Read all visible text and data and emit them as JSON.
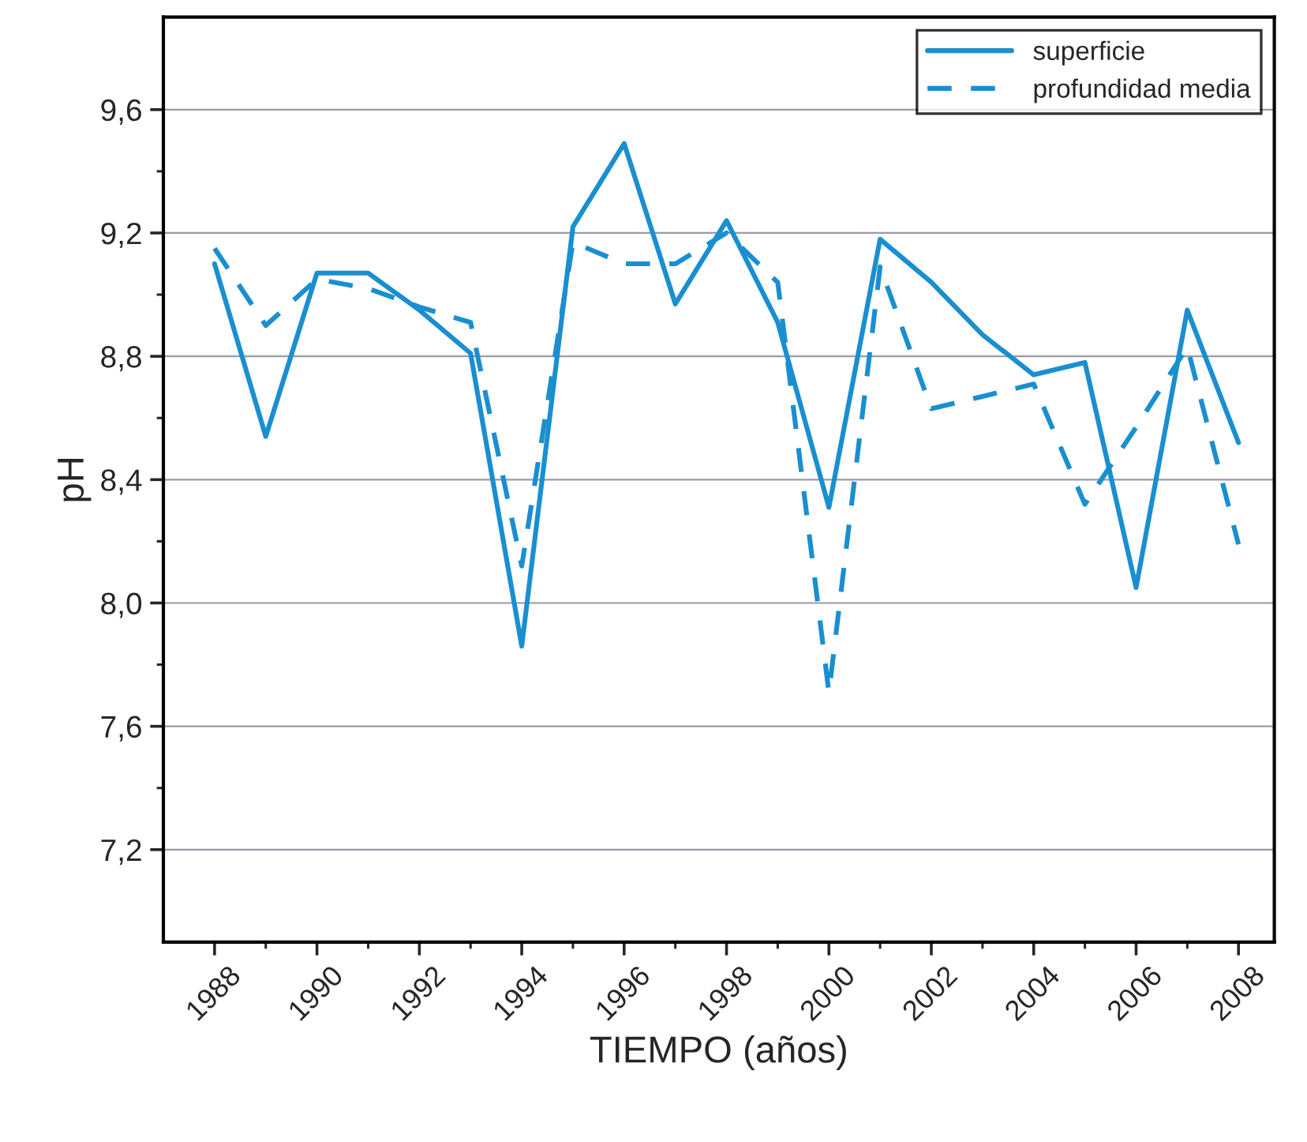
{
  "chart_data": {
    "type": "line",
    "xlabel": "TIEMPO (años)",
    "ylabel": "pH",
    "x": [
      1988,
      1989,
      1990,
      1991,
      1992,
      1993,
      1994,
      1995,
      1996,
      1997,
      1998,
      1999,
      2000,
      2001,
      2002,
      2003,
      2004,
      2005,
      2006,
      2007,
      2008
    ],
    "series": [
      {
        "name": "superficie",
        "color": "#1a8fd0",
        "line_style": "solid",
        "values": [
          9.1,
          8.54,
          9.07,
          9.07,
          8.95,
          8.81,
          7.86,
          9.22,
          9.49,
          8.97,
          9.24,
          8.91,
          8.31,
          9.18,
          9.04,
          8.87,
          8.74,
          8.78,
          8.05,
          8.95,
          8.52
        ]
      },
      {
        "name": "profundidad media",
        "color": "#1a8fd0",
        "line_style": "dashed",
        "values": [
          9.15,
          8.9,
          9.05,
          9.02,
          8.96,
          8.91,
          8.12,
          9.17,
          9.1,
          9.1,
          9.2,
          9.04,
          7.71,
          9.09,
          8.63,
          8.67,
          8.71,
          8.32,
          8.57,
          8.83,
          8.19
        ]
      }
    ],
    "xlim": [
      1987,
      2008.7
    ],
    "ylim": [
      6.9,
      9.9
    ],
    "xticks": [
      1988,
      1990,
      1992,
      1994,
      1996,
      1998,
      2000,
      2002,
      2004,
      2006,
      2008
    ],
    "yticks": [
      {
        "value": 7.2,
        "label": "7,2"
      },
      {
        "value": 7.6,
        "label": "7,6"
      },
      {
        "value": 8.0,
        "label": "8,0"
      },
      {
        "value": 8.4,
        "label": "8,4"
      },
      {
        "value": 8.8,
        "label": "8,8"
      },
      {
        "value": 9.2,
        "label": "9,2"
      },
      {
        "value": 9.6,
        "label": "9,6"
      }
    ],
    "grid": "y",
    "legend": "top right",
    "marker": "none"
  }
}
